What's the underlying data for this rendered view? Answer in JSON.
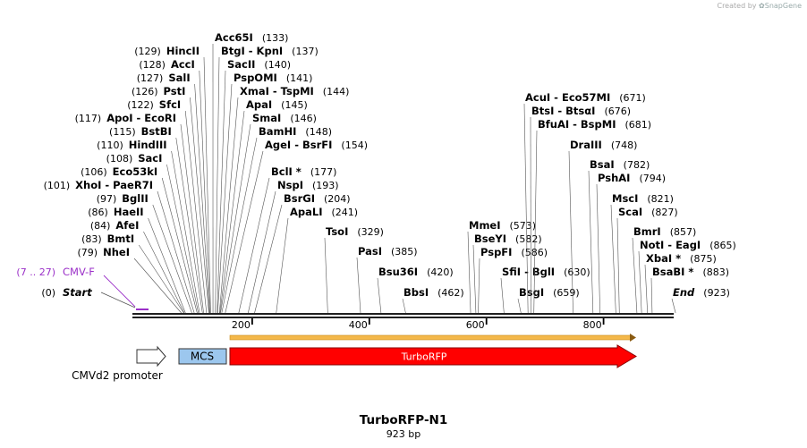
{
  "credit": {
    "text": "Created by",
    "brand": "SnapGene"
  },
  "map": {
    "name": "TurboRFP-N1",
    "size": "923 bp"
  },
  "axis": {
    "ticks": [
      "200",
      "400",
      "600",
      "800"
    ]
  },
  "colors": {
    "feature_purple": "#9b30c8",
    "turborfp": "#ff0000",
    "mcs": "#9cc7ee",
    "orf": "#f4b84a"
  },
  "enzymes_left": [
    {
      "name": "HincII",
      "pos": "(129)"
    },
    {
      "name": "AccI",
      "pos": "(128)"
    },
    {
      "name": "SalI",
      "pos": "(127)"
    },
    {
      "name": "PstI",
      "pos": "(126)"
    },
    {
      "name": "SfcI",
      "pos": "(122)"
    },
    {
      "name": "ApoI  - EcoRI",
      "pos": "(117)"
    },
    {
      "name": "BstBI",
      "pos": "(115)"
    },
    {
      "name": "HindIII",
      "pos": "(110)"
    },
    {
      "name": "SacI",
      "pos": "(108)"
    },
    {
      "name": "Eco53kI",
      "pos": "(106)"
    },
    {
      "name": "XhoI  - PaeR7I",
      "pos": "(101)"
    },
    {
      "name": "BglII",
      "pos": "(97)"
    },
    {
      "name": "HaeII",
      "pos": "(86)"
    },
    {
      "name": "AfeI",
      "pos": "(84)"
    },
    {
      "name": "BmtI",
      "pos": "(83)"
    },
    {
      "name": "NheI",
      "pos": "(79)"
    }
  ],
  "enzymes_mid": [
    {
      "name": "Acc65I",
      "pos": "(133)"
    },
    {
      "name": "BtgI  - KpnI",
      "pos": "(137)"
    },
    {
      "name": "SacII",
      "pos": "(140)"
    },
    {
      "name": "PspOMI",
      "pos": "(141)"
    },
    {
      "name": "XmaI  - TspMI",
      "pos": "(144)"
    },
    {
      "name": "ApaI",
      "pos": "(145)"
    },
    {
      "name": "SmaI",
      "pos": "(146)"
    },
    {
      "name": "BamHI",
      "pos": "(148)"
    },
    {
      "name": "AgeI  - BsrFI",
      "pos": "(154)"
    },
    {
      "name": "BclI *",
      "pos": "(177)"
    },
    {
      "name": "NspI",
      "pos": "(193)"
    },
    {
      "name": "BsrGI",
      "pos": "(204)"
    },
    {
      "name": "ApaLI",
      "pos": "(241)"
    }
  ],
  "enzymes_center": [
    {
      "name": "TsoI",
      "pos": "(329)"
    },
    {
      "name": "PasI",
      "pos": "(385)"
    },
    {
      "name": "Bsu36I",
      "pos": "(420)"
    },
    {
      "name": "BbsI",
      "pos": "(462)"
    },
    {
      "name": "MmeI",
      "pos": "(573)"
    },
    {
      "name": "BseYI",
      "pos": "(582)"
    },
    {
      "name": "PspFI",
      "pos": "(586)"
    },
    {
      "name": "SfiI  - BglI",
      "pos": "(630)"
    },
    {
      "name": "BsgI",
      "pos": "(659)"
    }
  ],
  "enzymes_right": [
    {
      "name": "AcuI  - Eco57MI",
      "pos": "(671)"
    },
    {
      "name": "BtsI  - BtsαI",
      "pos": "(676)"
    },
    {
      "name": "BfuAI  - BspMI",
      "pos": "(681)"
    },
    {
      "name": "DraIII",
      "pos": "(748)"
    },
    {
      "name": "BsaI",
      "pos": "(782)"
    },
    {
      "name": "PshAI",
      "pos": "(794)"
    },
    {
      "name": "MscI",
      "pos": "(821)"
    },
    {
      "name": "ScaI",
      "pos": "(827)"
    },
    {
      "name": "BmrI",
      "pos": "(857)"
    },
    {
      "name": "NotI  - EagI",
      "pos": "(865)"
    },
    {
      "name": "XbaI *",
      "pos": "(875)"
    },
    {
      "name": "BsaBI *",
      "pos": "(883)"
    },
    {
      "name": "End",
      "pos": "(923)"
    }
  ],
  "start": {
    "name": "Start",
    "pos": "(0)"
  },
  "cmvf": {
    "name": "CMV-F",
    "pos": "(7 .. 27)"
  },
  "features": {
    "cmv_promoter": "CMVd2 promoter",
    "mcs": "MCS",
    "turborfp": "TurboRFP"
  }
}
